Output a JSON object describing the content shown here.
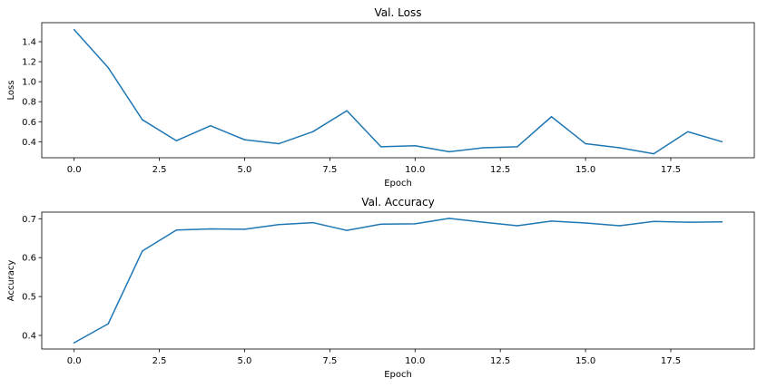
{
  "chart_data": [
    {
      "type": "line",
      "title": "Val. Loss",
      "xlabel": "Epoch",
      "ylabel": "Loss",
      "xlim": [
        -0.95,
        19.95
      ],
      "ylim": [
        0.24,
        1.59
      ],
      "xticks": [
        0.0,
        2.5,
        5.0,
        7.5,
        10.0,
        12.5,
        15.0,
        17.5
      ],
      "xtick_labels": [
        "0.0",
        "2.5",
        "5.0",
        "7.5",
        "10.0",
        "12.5",
        "15.0",
        "17.5"
      ],
      "yticks": [
        0.4,
        0.6,
        0.8,
        1.0,
        1.2,
        1.4
      ],
      "ytick_labels": [
        "0.4",
        "0.6",
        "0.8",
        "1.0",
        "1.2",
        "1.4"
      ],
      "grid": false,
      "color": "#1f77b4",
      "series": [
        {
          "x": [
            0,
            1,
            2,
            3,
            4,
            5,
            6,
            7,
            8,
            9,
            10,
            11,
            12,
            13,
            14,
            15,
            16,
            17,
            18,
            19
          ],
          "values": [
            1.52,
            1.14,
            0.62,
            0.41,
            0.56,
            0.42,
            0.38,
            0.5,
            0.71,
            0.35,
            0.36,
            0.3,
            0.34,
            0.35,
            0.65,
            0.38,
            0.34,
            0.28,
            0.5,
            0.4
          ]
        }
      ]
    },
    {
      "type": "line",
      "title": "Val. Accuracy",
      "xlabel": "Epoch",
      "ylabel": "Accuracy",
      "xlim": [
        -0.95,
        19.95
      ],
      "ylim": [
        0.365,
        0.717
      ],
      "xticks": [
        0.0,
        2.5,
        5.0,
        7.5,
        10.0,
        12.5,
        15.0,
        17.5
      ],
      "xtick_labels": [
        "0.0",
        "2.5",
        "5.0",
        "7.5",
        "10.0",
        "12.5",
        "15.0",
        "17.5"
      ],
      "yticks": [
        0.4,
        0.5,
        0.6,
        0.7
      ],
      "ytick_labels": [
        "0.4",
        "0.5",
        "0.6",
        "0.7"
      ],
      "grid": false,
      "color": "#1f77b4",
      "series": [
        {
          "x": [
            0,
            1,
            2,
            3,
            4,
            5,
            6,
            7,
            8,
            9,
            10,
            11,
            12,
            13,
            14,
            15,
            16,
            17,
            18,
            19
          ],
          "values": [
            0.381,
            0.43,
            0.617,
            0.671,
            0.674,
            0.673,
            0.685,
            0.69,
            0.67,
            0.686,
            0.687,
            0.701,
            0.691,
            0.682,
            0.694,
            0.689,
            0.682,
            0.693,
            0.691,
            0.692
          ]
        }
      ]
    }
  ]
}
